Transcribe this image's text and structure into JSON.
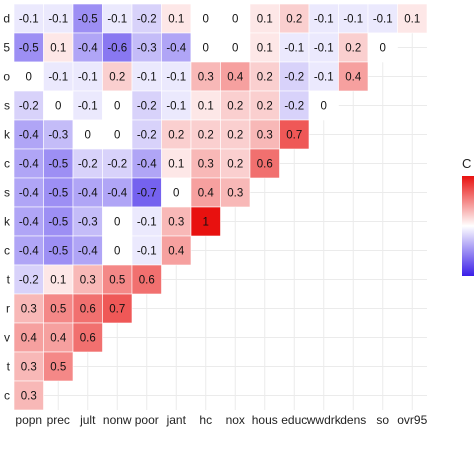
{
  "chart_data": {
    "type": "heatmap",
    "x_labels": [
      "popn",
      "prec",
      "jult",
      "nonw",
      "poor",
      "jant",
      "hc",
      "nox",
      "hous",
      "educ",
      "wwdrk",
      "dens",
      "so",
      "ovr95"
    ],
    "y_labels": [
      "d",
      "5",
      "o",
      "s",
      "k",
      "c",
      "s",
      "k",
      "c",
      "t",
      "r",
      "v",
      "t",
      "c"
    ],
    "rows": [
      [
        -0.1,
        -0.1,
        -0.5,
        -0.1,
        -0.2,
        0.1,
        0,
        0,
        0.1,
        0.2,
        -0.1,
        -0.1,
        -0.1,
        0.1
      ],
      [
        -0.5,
        0.1,
        -0.4,
        -0.6,
        -0.3,
        -0.4,
        0,
        0,
        0.1,
        -0.1,
        -0.1,
        0.2,
        0
      ],
      [
        0,
        -0.1,
        -0.1,
        0.2,
        -0.1,
        -0.1,
        0.3,
        0.4,
        0.2,
        -0.2,
        -0.1,
        0.4
      ],
      [
        -0.2,
        0,
        -0.1,
        0,
        -0.2,
        -0.1,
        0.1,
        0.2,
        0.2,
        -0.2,
        0
      ],
      [
        -0.4,
        -0.3,
        0,
        0,
        -0.2,
        0.2,
        0.2,
        0.2,
        0.3,
        0.7
      ],
      [
        -0.4,
        -0.5,
        -0.2,
        -0.2,
        -0.4,
        0.1,
        0.3,
        0.2,
        0.6
      ],
      [
        -0.4,
        -0.5,
        -0.4,
        -0.4,
        -0.7,
        0,
        0.4,
        0.3
      ],
      [
        -0.4,
        -0.5,
        -0.3,
        0,
        -0.1,
        0.3,
        1
      ],
      [
        -0.4,
        -0.5,
        -0.4,
        0,
        -0.1,
        0.4
      ],
      [
        -0.2,
        0.1,
        0.3,
        0.5,
        0.6
      ],
      [
        0.3,
        0.5,
        0.6,
        0.7
      ],
      [
        0.4,
        0.4,
        0.6
      ],
      [
        0.3,
        0.5
      ],
      [
        0.3
      ]
    ],
    "value_range": [
      -1,
      1
    ],
    "legend_title": "C",
    "legend_position": "right",
    "grid": true,
    "colors": {
      "negative": "#3a1ee8",
      "zero": "#ffffff",
      "positive": "#e8110f"
    }
  }
}
